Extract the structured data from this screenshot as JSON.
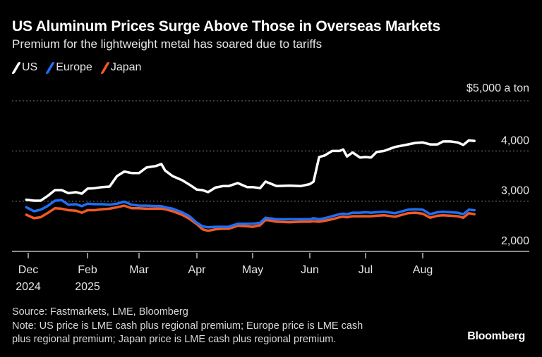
{
  "header": {
    "title": "US Aluminum Prices Surge Above Those in Overseas Markets",
    "subtitle": "Premium for the lightweight metal has soared due to tariffs"
  },
  "footer": {
    "source": "Source: Fastmarkets, LME, Bloomberg",
    "note_line1": "Note: US price is LME cash plus regional premium; Europe price is LME cash",
    "note_line2": "plus regional premium; Japan price is LME cash plus regional premium.",
    "brand": "Bloomberg"
  },
  "chart_data": {
    "type": "line",
    "title": "US Aluminum Prices Surge Above Those in Overseas Markets",
    "subtitle": "Premium for the lightweight metal has soared due to tariffs",
    "ylabel": "$5,000 a ton",
    "ylim": [
      2000,
      5000
    ],
    "yticks": [
      2000,
      3000,
      4000,
      5000
    ],
    "ytick_labels": [
      "2,000",
      "3,000",
      "4,000",
      "$5,000 a ton"
    ],
    "grid": "horizontal dotted",
    "legend": "top-left",
    "xticks": [
      {
        "date": "2024-12-01",
        "label": "Dec",
        "sub": "2024"
      },
      {
        "date": "2025-02-01",
        "label": "Feb",
        "sub": "2025"
      },
      {
        "date": "2025-03-01",
        "label": "Mar",
        "sub": ""
      },
      {
        "date": "2025-04-01",
        "label": "Apr",
        "sub": ""
      },
      {
        "date": "2025-05-01",
        "label": "May",
        "sub": ""
      },
      {
        "date": "2025-06-01",
        "label": "Jun",
        "sub": ""
      },
      {
        "date": "2025-07-01",
        "label": "Jul",
        "sub": ""
      },
      {
        "date": "2025-08-01",
        "label": "Aug",
        "sub": ""
      }
    ],
    "x": [
      "2024-11-29",
      "2024-12-07",
      "2024-12-14",
      "2024-12-21",
      "2024-12-29",
      "2025-01-05",
      "2025-01-12",
      "2025-01-20",
      "2025-01-26",
      "2025-02-01",
      "2025-02-05",
      "2025-02-09",
      "2025-02-13",
      "2025-02-17",
      "2025-02-21",
      "2025-02-25",
      "2025-03-01",
      "2025-03-05",
      "2025-03-10",
      "2025-03-13",
      "2025-03-15",
      "2025-03-19",
      "2025-03-24",
      "2025-03-28",
      "2025-04-01",
      "2025-04-04",
      "2025-04-07",
      "2025-04-11",
      "2025-04-15",
      "2025-04-18",
      "2025-04-23",
      "2025-04-28",
      "2025-05-01",
      "2025-05-05",
      "2025-05-08",
      "2025-05-14",
      "2025-05-21",
      "2025-05-27",
      "2025-06-01",
      "2025-06-03",
      "2025-06-06",
      "2025-06-09",
      "2025-06-13",
      "2025-06-17",
      "2025-06-19",
      "2025-06-21",
      "2025-06-24",
      "2025-06-28",
      "2025-07-01",
      "2025-07-04",
      "2025-07-07",
      "2025-07-11",
      "2025-07-17",
      "2025-07-24",
      "2025-07-28",
      "2025-08-01",
      "2025-08-05",
      "2025-08-09",
      "2025-08-12",
      "2025-08-16",
      "2025-08-20",
      "2025-08-23",
      "2025-08-26",
      "2025-08-29"
    ],
    "series": [
      {
        "name": "US",
        "color": "#ffffff",
        "values": [
          3030,
          3010,
          3010,
          3100,
          3220,
          3220,
          3160,
          3180,
          3150,
          3250,
          3260,
          3280,
          3290,
          3500,
          3590,
          3560,
          3560,
          3670,
          3700,
          3740,
          3610,
          3500,
          3420,
          3330,
          3230,
          3220,
          3180,
          3270,
          3300,
          3300,
          3360,
          3280,
          3280,
          3260,
          3390,
          3300,
          3310,
          3300,
          3340,
          3390,
          3880,
          3910,
          4000,
          4000,
          4030,
          3890,
          3970,
          3870,
          3880,
          3870,
          3980,
          4000,
          4080,
          4130,
          4160,
          4170,
          4130,
          4130,
          4190,
          4190,
          4170,
          4120,
          4210,
          4200
        ]
      },
      {
        "name": "Europe",
        "color": "#1f6ff5",
        "values": [
          2880,
          2800,
          2830,
          2900,
          3010,
          3020,
          2930,
          2940,
          2900,
          2950,
          2940,
          2940,
          2930,
          2950,
          2990,
          2930,
          2910,
          2910,
          2900,
          2900,
          2880,
          2850,
          2780,
          2700,
          2570,
          2500,
          2480,
          2490,
          2490,
          2490,
          2550,
          2550,
          2550,
          2570,
          2670,
          2640,
          2640,
          2640,
          2640,
          2660,
          2640,
          2660,
          2700,
          2740,
          2750,
          2740,
          2770,
          2770,
          2780,
          2770,
          2780,
          2790,
          2760,
          2830,
          2840,
          2830,
          2740,
          2780,
          2790,
          2780,
          2770,
          2740,
          2830,
          2820
        ]
      },
      {
        "name": "Japan",
        "color": "#f05a24",
        "values": [
          2730,
          2660,
          2680,
          2760,
          2860,
          2850,
          2820,
          2810,
          2770,
          2820,
          2820,
          2840,
          2850,
          2880,
          2910,
          2860,
          2860,
          2850,
          2850,
          2850,
          2840,
          2800,
          2730,
          2650,
          2540,
          2440,
          2410,
          2440,
          2450,
          2450,
          2510,
          2500,
          2490,
          2520,
          2630,
          2590,
          2580,
          2590,
          2590,
          2600,
          2590,
          2610,
          2640,
          2680,
          2690,
          2680,
          2700,
          2700,
          2700,
          2700,
          2710,
          2720,
          2690,
          2760,
          2770,
          2750,
          2670,
          2710,
          2720,
          2710,
          2700,
          2670,
          2760,
          2740
        ]
      }
    ]
  }
}
